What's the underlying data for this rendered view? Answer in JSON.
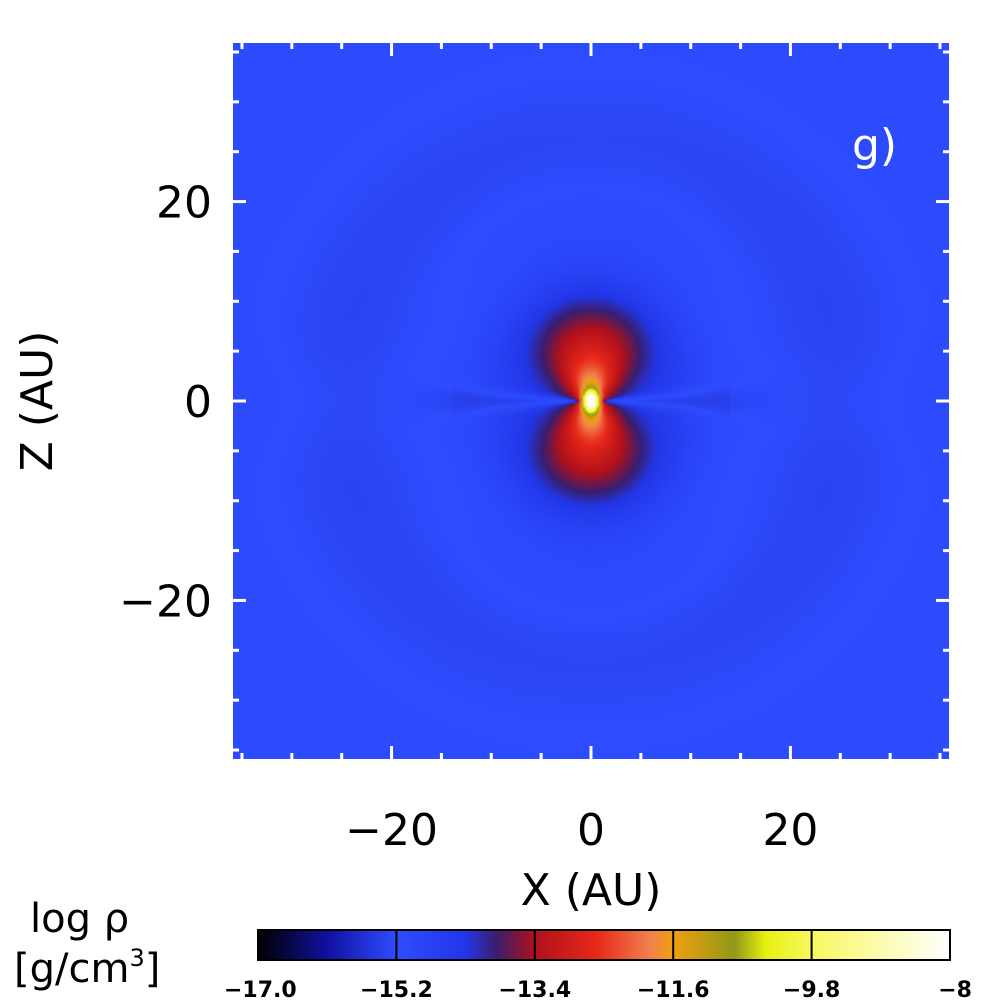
{
  "chart_data": {
    "type": "heatmap",
    "panel_label": "g)",
    "xlabel": "X (AU)",
    "ylabel": "Z (AU)",
    "xlim": [
      -36,
      36
    ],
    "ylim": [
      -36,
      36
    ],
    "x_ticks": [
      -20,
      0,
      20
    ],
    "y_ticks": [
      -20,
      0,
      20
    ],
    "x_tick_labels": [
      "−20",
      "0",
      "20"
    ],
    "y_tick_labels": [
      "−20",
      "0",
      "20"
    ],
    "minor_tick_step": 5,
    "colorbar": {
      "label_line1": "log ρ",
      "label_line2": "[g/cm",
      "label_sup": "3",
      "label_close": "]",
      "range": [
        -17.0,
        -8.0
      ],
      "tick_values": [
        -17.0,
        -15.2,
        -13.4,
        -11.6,
        -9.8,
        -8.0
      ],
      "tick_labels": [
        "−17.0",
        "−15.2",
        "−13.4",
        "−11.6",
        "−9.8",
        "−8"
      ],
      "colormap": [
        {
          "value": -17.0,
          "color": "#000000"
        },
        {
          "value": -16.1,
          "color": "#1010a0"
        },
        {
          "value": -15.2,
          "color": "#2e4cff"
        },
        {
          "value": -14.3,
          "color": "#2236e8"
        },
        {
          "value": -13.9,
          "color": "#3a1e6e"
        },
        {
          "value": -13.4,
          "color": "#b0101c"
        },
        {
          "value": -12.6,
          "color": "#e82818"
        },
        {
          "value": -11.9,
          "color": "#f08050"
        },
        {
          "value": -11.6,
          "color": "#f0a010"
        },
        {
          "value": -10.8,
          "color": "#909818"
        },
        {
          "value": -10.4,
          "color": "#e8f010"
        },
        {
          "value": -9.8,
          "color": "#f8f860"
        },
        {
          "value": -8.0,
          "color": "#ffffff"
        }
      ]
    },
    "field": {
      "description_free": true,
      "peak_log_rho": -8.0,
      "background_log_rho": -15.1,
      "lobe_log_rho": -13.0
    }
  }
}
